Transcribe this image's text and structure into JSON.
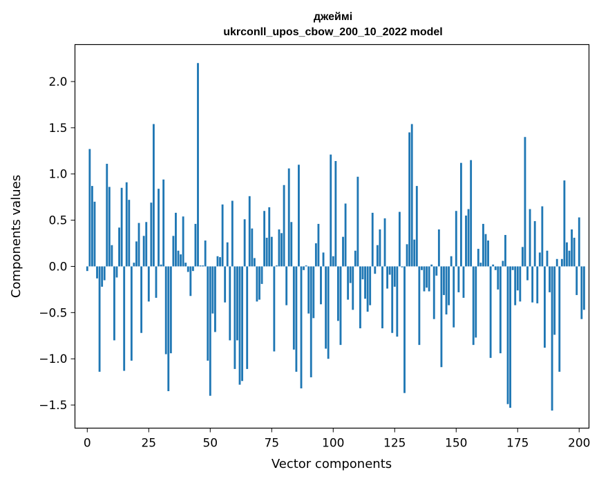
{
  "chart_data": {
    "type": "bar",
    "title": "джеймі",
    "subtitle": "ukrconll_upos_cbow_200_10_2022 model",
    "xlabel": "Vector components",
    "ylabel": "Components values",
    "xlim": [
      -5,
      204
    ],
    "ylim": [
      -1.75,
      2.4
    ],
    "xticks": [
      0,
      25,
      50,
      75,
      100,
      125,
      150,
      175,
      200
    ],
    "xtick_labels": [
      "0",
      "25",
      "50",
      "75",
      "100",
      "125",
      "150",
      "175",
      "200"
    ],
    "yticks": [
      -1.5,
      -1.0,
      -0.5,
      0.0,
      0.5,
      1.0,
      1.5,
      2.0
    ],
    "ytick_labels": [
      "−1.5",
      "−1.0",
      "−0.5",
      "0.0",
      "0.5",
      "1.0",
      "1.5",
      "2.0"
    ],
    "bar_color": "#1f77b4",
    "grid": false,
    "legend": "none",
    "values": [
      -0.05,
      1.27,
      0.87,
      0.7,
      -0.13,
      -1.14,
      -0.22,
      -0.15,
      1.11,
      0.86,
      0.23,
      -0.8,
      -0.12,
      0.42,
      0.85,
      -1.13,
      0.91,
      0.72,
      -1.02,
      0.04,
      0.27,
      0.47,
      -0.72,
      0.33,
      0.48,
      -0.38,
      0.69,
      1.54,
      -0.34,
      0.84,
      0.02,
      0.94,
      -0.95,
      -1.35,
      -0.94,
      0.33,
      0.58,
      0.17,
      0.13,
      0.54,
      0.04,
      -0.06,
      -0.32,
      -0.05,
      0.46,
      2.2,
      0.01,
      0.01,
      0.28,
      -1.02,
      -1.4,
      -0.51,
      -0.71,
      0.11,
      0.1,
      0.67,
      -0.39,
      0.26,
      -0.8,
      0.71,
      -1.11,
      -0.8,
      -1.28,
      -1.24,
      0.51,
      -1.11,
      0.76,
      0.41,
      0.09,
      -0.38,
      -0.36,
      -0.19,
      0.6,
      0.31,
      0.64,
      0.32,
      -0.92,
      0.01,
      0.4,
      0.36,
      0.88,
      -0.42,
      1.06,
      0.48,
      -0.9,
      -1.14,
      1.1,
      -1.32,
      -0.04,
      0.01,
      -0.51,
      -1.2,
      -0.56,
      0.25,
      0.46,
      -0.41,
      0.15,
      -0.89,
      -1.0,
      1.21,
      0.11,
      1.14,
      -0.59,
      -0.85,
      0.32,
      0.68,
      -0.36,
      -0.18,
      -0.47,
      0.17,
      0.97,
      -0.67,
      -0.14,
      -0.35,
      -0.49,
      -0.42,
      0.58,
      -0.08,
      0.23,
      0.4,
      -0.67,
      0.52,
      -0.24,
      -0.09,
      -0.72,
      -0.22,
      -0.76,
      0.59,
      -0.01,
      -1.37,
      0.24,
      1.45,
      1.54,
      0.29,
      0.87,
      -0.85,
      -0.04,
      -0.27,
      -0.23,
      -0.27,
      0.02,
      -0.57,
      -0.1,
      0.4,
      -1.09,
      -0.31,
      -0.52,
      -0.42,
      0.11,
      -0.66,
      0.6,
      -0.28,
      1.12,
      -0.34,
      0.55,
      0.62,
      1.15,
      -0.85,
      -0.77,
      0.19,
      0.04,
      0.46,
      0.35,
      0.28,
      -0.99,
      0.02,
      -0.04,
      -0.25,
      -0.94,
      0.06,
      0.34,
      -1.49,
      -1.53,
      -0.04,
      -0.42,
      -0.26,
      -0.38,
      0.21,
      1.4,
      -0.15,
      0.62,
      -0.39,
      0.49,
      -0.4,
      0.15,
      0.65,
      -0.88,
      0.17,
      -0.28,
      -1.56,
      -0.74,
      0.08,
      -1.14,
      0.08,
      0.93,
      0.26,
      0.17,
      0.4,
      0.31,
      -0.31,
      0.53,
      -0.57,
      -0.47
    ]
  }
}
